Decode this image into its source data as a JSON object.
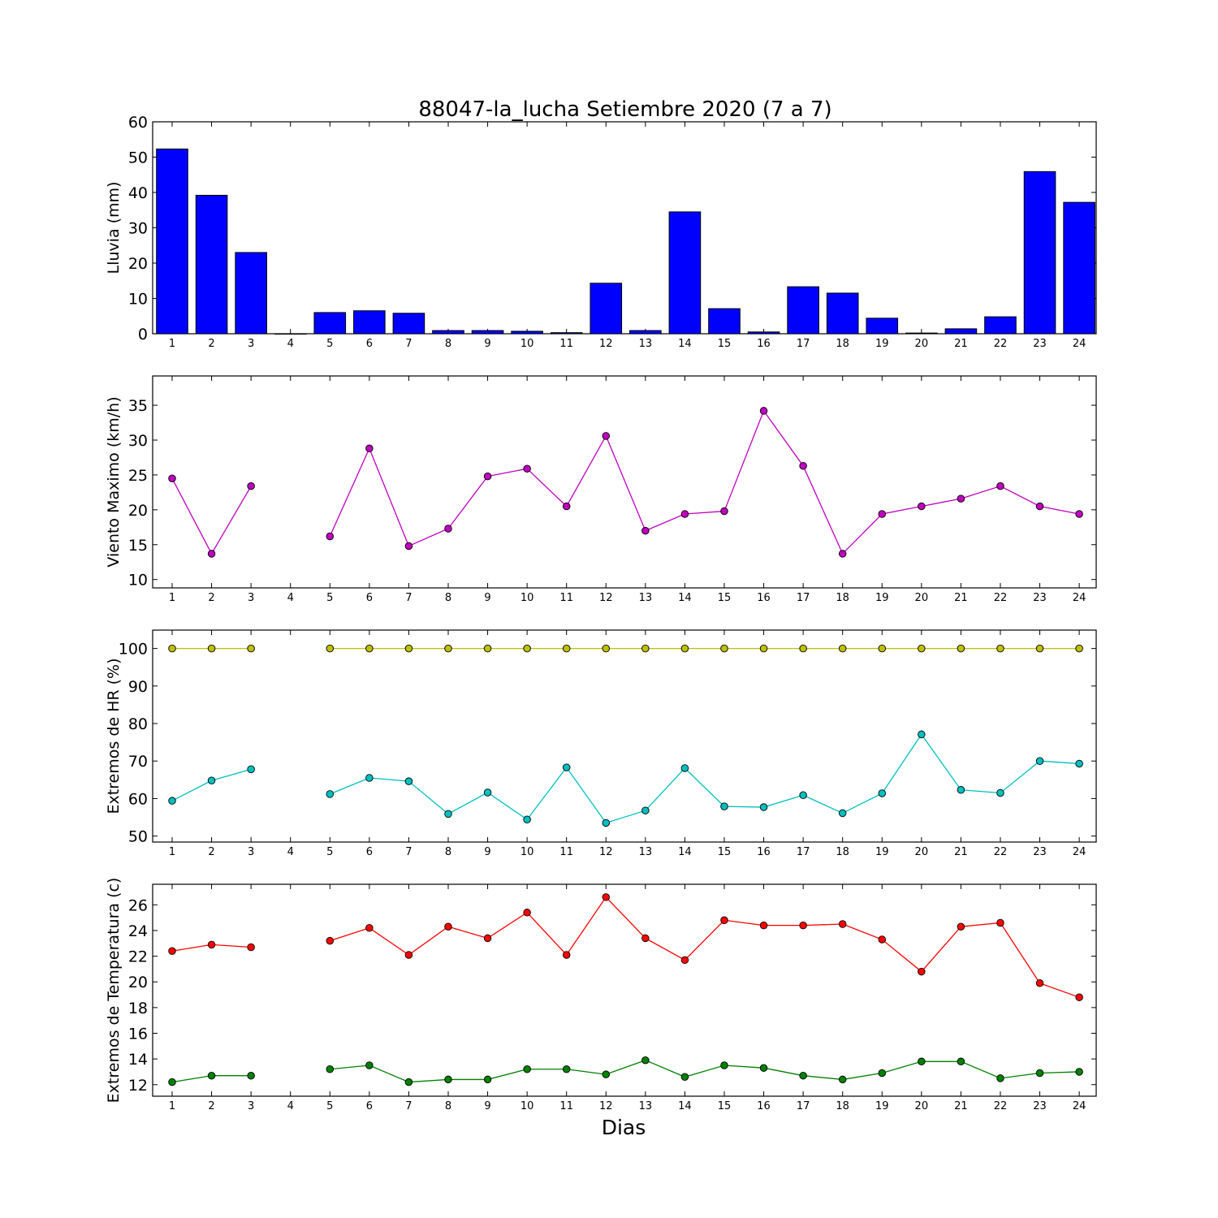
{
  "title": "88047-la_lucha Setiembre 2020  (7 a 7)",
  "xlabel": "Dias",
  "colors": {
    "rain": "#0000ff",
    "wind": "#bf00bf",
    "hr_max": "#bfbf00",
    "hr_min": "#00bfbf",
    "temp_max": "#ff0000",
    "temp_min": "#008000"
  },
  "chart_data": [
    {
      "type": "bar",
      "ylabel": "Lluvia (mm)",
      "categories": [
        "1",
        "2",
        "3",
        "4",
        "5",
        "6",
        "7",
        "8",
        "9",
        "10",
        "11",
        "12",
        "13",
        "14",
        "15",
        "16",
        "17",
        "18",
        "19",
        "20",
        "21",
        "22",
        "23",
        "24"
      ],
      "ylim": [
        0,
        60
      ],
      "yticks": [
        0,
        10,
        20,
        30,
        40,
        50,
        60
      ],
      "series": [
        {
          "color_key": "rain",
          "values": [
            52.3,
            39.2,
            23.0,
            0,
            6.0,
            6.5,
            5.8,
            0.9,
            0.9,
            0.7,
            0.3,
            14.3,
            0.9,
            34.5,
            7.1,
            0.5,
            13.3,
            11.5,
            4.4,
            0.2,
            1.4,
            4.8,
            45.9,
            37.2
          ]
        }
      ]
    },
    {
      "type": "line",
      "ylabel": "Viento Maximo (km/h)",
      "categories": [
        "1",
        "2",
        "3",
        "4",
        "5",
        "6",
        "7",
        "8",
        "9",
        "10",
        "11",
        "12",
        "13",
        "14",
        "15",
        "16",
        "17",
        "18",
        "19",
        "20",
        "21",
        "22",
        "23",
        "24"
      ],
      "ylim": [
        8.8,
        39.2
      ],
      "yticks": [
        10,
        15,
        20,
        25,
        30,
        35
      ],
      "series": [
        {
          "color_key": "wind",
          "values": [
            24.5,
            13.7,
            23.4,
            null,
            16.2,
            28.8,
            14.8,
            17.3,
            24.8,
            25.9,
            20.5,
            30.6,
            17.0,
            19.4,
            19.8,
            34.2,
            26.3,
            13.7,
            19.4,
            20.5,
            21.6,
            23.4,
            20.5,
            19.4
          ]
        }
      ]
    },
    {
      "type": "line",
      "ylabel": "Extremos de HR (%)",
      "categories": [
        "1",
        "2",
        "3",
        "4",
        "5",
        "6",
        "7",
        "8",
        "9",
        "10",
        "11",
        "12",
        "13",
        "14",
        "15",
        "16",
        "17",
        "18",
        "19",
        "20",
        "21",
        "22",
        "23",
        "24"
      ],
      "ylim": [
        48.4,
        104.9
      ],
      "yticks": [
        50,
        60,
        70,
        80,
        90,
        100
      ],
      "series": [
        {
          "color_key": "hr_max",
          "values": [
            100,
            100,
            100,
            null,
            100,
            100,
            100,
            100,
            100,
            100,
            100,
            100,
            100,
            100,
            100,
            100,
            100,
            100,
            100,
            100,
            100,
            100,
            100,
            100
          ]
        },
        {
          "color_key": "hr_min",
          "values": [
            59.4,
            64.8,
            67.8,
            null,
            61.2,
            65.5,
            64.6,
            55.9,
            61.6,
            54.4,
            68.3,
            53.5,
            56.8,
            68.1,
            57.9,
            57.7,
            60.9,
            56.1,
            61.4,
            77.1,
            62.3,
            61.5,
            70.0,
            69.3
          ]
        }
      ]
    },
    {
      "type": "line",
      "ylabel": "Extremos de Temperatura (c)",
      "categories": [
        "1",
        "2",
        "3",
        "4",
        "5",
        "6",
        "7",
        "8",
        "9",
        "10",
        "11",
        "12",
        "13",
        "14",
        "15",
        "16",
        "17",
        "18",
        "19",
        "20",
        "21",
        "22",
        "23",
        "24"
      ],
      "ylim": [
        11.1,
        27.6
      ],
      "yticks": [
        12,
        14,
        16,
        18,
        20,
        22,
        24,
        26
      ],
      "series": [
        {
          "color_key": "temp_max",
          "values": [
            22.4,
            22.9,
            22.7,
            null,
            23.2,
            24.2,
            22.1,
            24.3,
            23.4,
            25.4,
            22.1,
            26.6,
            23.4,
            21.7,
            24.8,
            24.4,
            24.4,
            24.5,
            23.3,
            20.8,
            24.3,
            24.6,
            19.9,
            18.8
          ]
        },
        {
          "color_key": "temp_min",
          "values": [
            12.2,
            12.7,
            12.7,
            null,
            13.2,
            13.5,
            12.2,
            12.4,
            12.4,
            13.2,
            13.2,
            12.8,
            13.9,
            12.6,
            13.5,
            13.3,
            12.7,
            12.4,
            12.9,
            13.8,
            13.8,
            12.5,
            12.9,
            13.0
          ]
        }
      ]
    }
  ]
}
